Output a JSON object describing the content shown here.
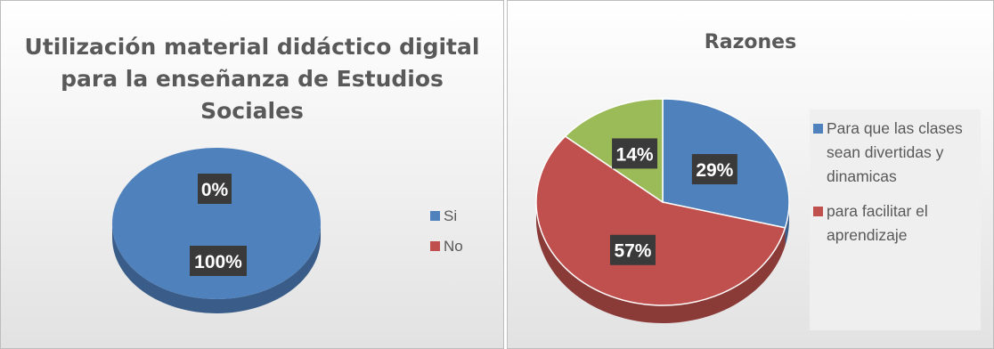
{
  "chart_data": [
    {
      "type": "pie",
      "title": "Utilización material didáctico digital\npara la enseñanza de Estudios\nSociales",
      "categories": [
        "Si",
        "No"
      ],
      "values": [
        100,
        0
      ],
      "data_labels": [
        "100%",
        "0%"
      ],
      "colors": [
        "#4f81bd",
        "#c0504d"
      ],
      "legend_position": "right"
    },
    {
      "type": "pie",
      "title": "Razones",
      "categories": [
        "Para que las clases sean divertidas y dinamicas",
        "para facilitar el aprendizaje",
        ""
      ],
      "values": [
        29,
        57,
        14
      ],
      "data_labels": [
        "29%",
        "57%",
        "14%"
      ],
      "colors": [
        "#4f81bd",
        "#c0504d",
        "#9bbb59"
      ],
      "legend_position": "right"
    }
  ]
}
